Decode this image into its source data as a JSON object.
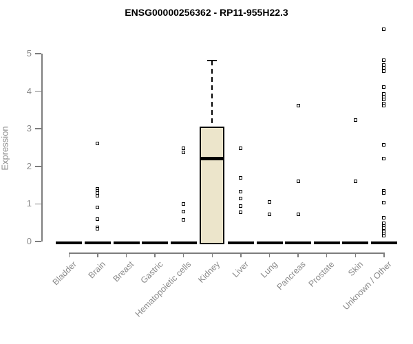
{
  "title": "ENSG00000256362 - RP11-955H22.3",
  "y_axis": {
    "label": "Expression",
    "ticks": [
      "0",
      "1",
      "2",
      "3",
      "4",
      "5"
    ]
  },
  "colors": {
    "title": "#000000",
    "axis": "#7d7d7d",
    "tick_label": "#8a8a8a",
    "box_fill": "#ece5cb",
    "box_border": "#000000",
    "median": "#000000",
    "outlier_fill": "#ffffff",
    "outlier_border": "#000000",
    "zero_bar": "#000000"
  },
  "chart_data": {
    "type": "boxplot",
    "title": "ENSG00000256362 - RP11-955H22.3",
    "xlabel": "",
    "ylabel": "Expression",
    "ylim": [
      0,
      5
    ],
    "grid": false,
    "categories": [
      "Bladder",
      "Brain",
      "Breast",
      "Gastric",
      "Hematopoietic cells",
      "Kidney",
      "Liver",
      "Lung",
      "Pancreas",
      "Prostate",
      "Skin",
      "Unknown / Other"
    ],
    "series": [
      {
        "name": "Bladder",
        "q1": 0,
        "median": 0,
        "q3": 0,
        "whisker_low": 0,
        "whisker_high": 0,
        "outliers": []
      },
      {
        "name": "Brain",
        "q1": 0,
        "median": 0,
        "q3": 0,
        "whisker_low": 0,
        "whisker_high": 0,
        "outliers": [
          2.61,
          1.41,
          1.35,
          1.29,
          1.21,
          0.9,
          0.59,
          0.38,
          0.34
        ]
      },
      {
        "name": "Breast",
        "q1": 0,
        "median": 0,
        "q3": 0,
        "whisker_low": 0,
        "whisker_high": 0,
        "outliers": []
      },
      {
        "name": "Gastric",
        "q1": 0,
        "median": 0,
        "q3": 0,
        "whisker_low": 0,
        "whisker_high": 0,
        "outliers": []
      },
      {
        "name": "Hematopoietic cells",
        "q1": 0,
        "median": 0,
        "q3": 0,
        "whisker_low": 0,
        "whisker_high": 0,
        "outliers": [
          2.49,
          2.37,
          0.99,
          0.8,
          0.57
        ]
      },
      {
        "name": "Kidney",
        "q1": 0,
        "median": 2.2,
        "q3": 3.05,
        "whisker_low": 0,
        "whisker_high": 4.82,
        "outliers": []
      },
      {
        "name": "Liver",
        "q1": 0,
        "median": 0,
        "q3": 0,
        "whisker_low": 0,
        "whisker_high": 0,
        "outliers": [
          2.49,
          1.7,
          1.32,
          1.14,
          0.95,
          0.78
        ]
      },
      {
        "name": "Lung",
        "q1": 0,
        "median": 0,
        "q3": 0,
        "whisker_low": 0,
        "whisker_high": 0,
        "outliers": [
          1.05,
          0.73
        ]
      },
      {
        "name": "Pancreas",
        "q1": 0,
        "median": 0,
        "q3": 0,
        "whisker_low": 0,
        "whisker_high": 0,
        "outliers": [
          3.62,
          1.61,
          0.73
        ]
      },
      {
        "name": "Prostate",
        "q1": 0,
        "median": 0,
        "q3": 0,
        "whisker_low": 0,
        "whisker_high": 0,
        "outliers": []
      },
      {
        "name": "Skin",
        "q1": 0,
        "median": 0,
        "q3": 0,
        "whisker_low": 0,
        "whisker_high": 0,
        "outliers": [
          3.24,
          1.6
        ]
      },
      {
        "name": "Unknown / Other",
        "q1": 0,
        "median": 0,
        "q3": 0,
        "whisker_low": 0,
        "whisker_high": 0,
        "outliers": [
          5.65,
          4.83,
          4.69,
          4.62,
          4.54,
          4.11,
          3.93,
          3.86,
          3.79,
          3.68,
          3.62,
          2.57,
          2.2,
          1.35,
          1.29,
          1.03,
          0.63,
          0.49,
          0.42,
          0.35,
          0.27,
          0.2,
          0.15
        ]
      }
    ]
  }
}
